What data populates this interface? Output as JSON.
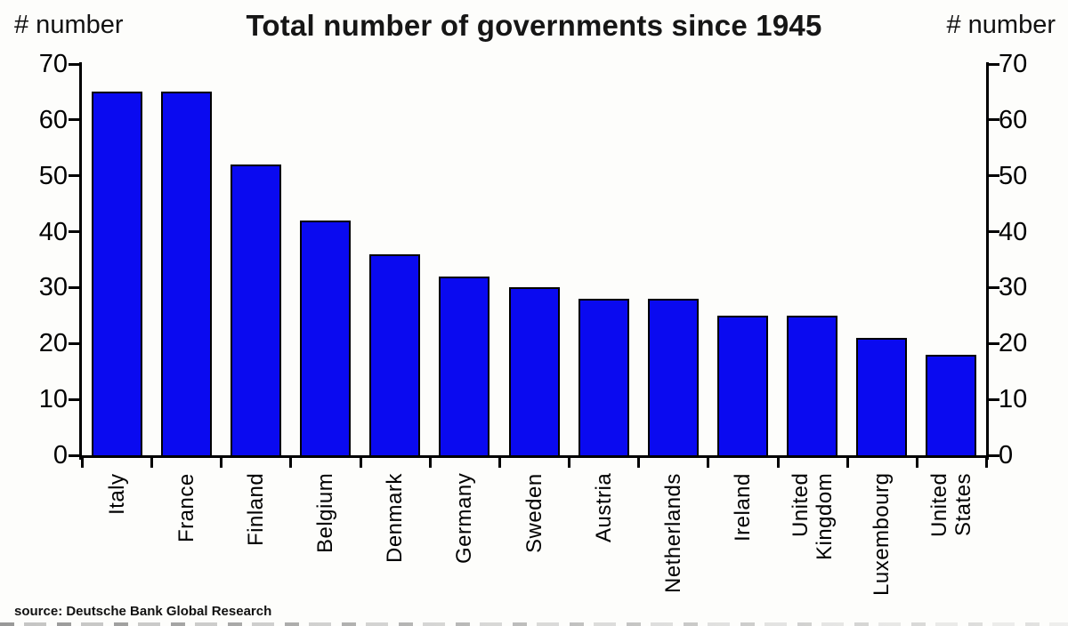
{
  "chart_data": {
    "type": "bar",
    "title": "Total number of governments since 1945",
    "left_axis_label": "# number",
    "right_axis_label": "# number",
    "categories": [
      "Italy",
      "France",
      "Finland",
      "Belgium",
      "Denmark",
      "Germany",
      "Sweden",
      "Austria",
      "Netherlands",
      "Ireland",
      "United Kingdom",
      "Luxembourg",
      "United States"
    ],
    "category_label_lines": [
      [
        "Italy"
      ],
      [
        "France"
      ],
      [
        "Finland"
      ],
      [
        "Belgium"
      ],
      [
        "Denmark"
      ],
      [
        "Germany"
      ],
      [
        "Sweden"
      ],
      [
        "Austria"
      ],
      [
        "Netherlands"
      ],
      [
        "Ireland"
      ],
      [
        "United",
        "Kingdom"
      ],
      [
        "Luxembourg"
      ],
      [
        "United States"
      ]
    ],
    "values": [
      65,
      65,
      52,
      42,
      36,
      32,
      30,
      28,
      28,
      25,
      25,
      21,
      18
    ],
    "ylim": [
      0,
      70
    ],
    "yticks": [
      0,
      10,
      20,
      30,
      40,
      50,
      60,
      70
    ],
    "xlabel": "",
    "ylabel": "# number",
    "grid": false,
    "legend": "none",
    "bar_color": "#0a0af0",
    "bar_border_color": "#000000"
  },
  "source": "source: Deutsche Bank Global Research"
}
